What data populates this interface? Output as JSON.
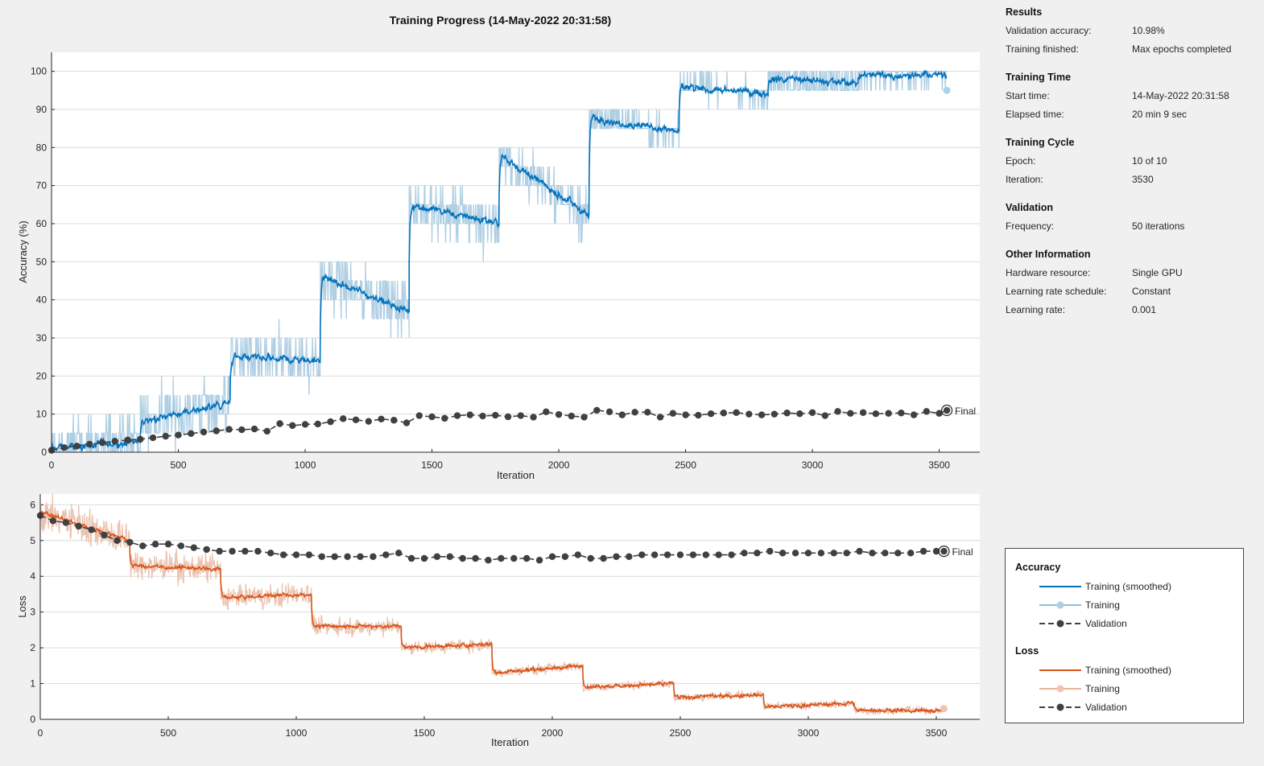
{
  "title": "Training Progress (14-May-2022 20:31:58)",
  "colors": {
    "acc_smoothed": "#0072bd",
    "acc_raw": "#b0cfe3",
    "loss_smoothed": "#d95319",
    "loss_raw": "#ebc3b0",
    "validation": "#404040",
    "grid": "#dcdcdc"
  },
  "info": {
    "sections": [
      {
        "title": "Results",
        "rows": [
          {
            "k": "Validation accuracy:",
            "v": "10.98%"
          },
          {
            "k": "Training finished:",
            "v": "Max epochs completed"
          }
        ]
      },
      {
        "title": "Training Time",
        "rows": [
          {
            "k": "Start time:",
            "v": "14-May-2022 20:31:58"
          },
          {
            "k": "Elapsed time:",
            "v": "20 min 9 sec"
          }
        ]
      },
      {
        "title": "Training Cycle",
        "rows": [
          {
            "k": "Epoch:",
            "v": "10 of 10"
          },
          {
            "k": "Iteration:",
            "v": "3530"
          }
        ]
      },
      {
        "title": "Validation",
        "rows": [
          {
            "k": "Frequency:",
            "v": "50 iterations"
          }
        ]
      },
      {
        "title": "Other Information",
        "rows": [
          {
            "k": "Hardware resource:",
            "v": "Single GPU"
          },
          {
            "k": "Learning rate schedule:",
            "v": "Constant"
          },
          {
            "k": "Learning rate:",
            "v": "0.001"
          }
        ]
      }
    ]
  },
  "legend": {
    "accuracy_title": "Accuracy",
    "loss_title": "Loss",
    "accuracy_items": [
      "Training (smoothed)",
      "Training",
      "Validation"
    ],
    "loss_items": [
      "Training (smoothed)",
      "Training",
      "Validation"
    ]
  },
  "chart_data": [
    {
      "type": "line",
      "ylabel": "Accuracy (%)",
      "xlabel": "Iteration",
      "xlim": [
        0,
        3660
      ],
      "ylim": [
        0,
        105
      ],
      "xticks": [
        0,
        500,
        1000,
        1500,
        2000,
        2500,
        3000,
        3500
      ],
      "yticks": [
        0,
        10,
        20,
        30,
        40,
        50,
        60,
        70,
        80,
        90,
        100
      ],
      "grid": true,
      "training_smoothed_levels": [
        {
          "x": [
            0,
            350
          ],
          "y": [
            1,
            3
          ]
        },
        {
          "x": [
            350,
            705
          ],
          "y": [
            8,
            13
          ]
        },
        {
          "x": [
            705,
            1060
          ],
          "y": [
            25,
            24
          ]
        },
        {
          "x": [
            1060,
            1410
          ],
          "y": [
            46,
            37
          ]
        },
        {
          "x": [
            1410,
            1765
          ],
          "y": [
            65,
            60
          ]
        },
        {
          "x": [
            1765,
            2120
          ],
          "y": [
            78,
            62
          ]
        },
        {
          "x": [
            2120,
            2475
          ],
          "y": [
            88,
            84
          ]
        },
        {
          "x": [
            2475,
            2825
          ],
          "y": [
            96,
            94
          ]
        },
        {
          "x": [
            2825,
            3180
          ],
          "y": [
            98,
            97
          ]
        },
        {
          "x": [
            3180,
            3530
          ],
          "y": [
            99,
            99
          ]
        }
      ],
      "final_training_point": {
        "x": 3530,
        "y": 95
      },
      "validation": {
        "x": [
          0,
          50,
          100,
          150,
          200,
          250,
          300,
          350,
          400,
          450,
          500,
          550,
          600,
          650,
          700,
          750,
          800,
          850,
          900,
          950,
          1000,
          1050,
          1100,
          1150,
          1200,
          1250,
          1300,
          1350,
          1400,
          1450,
          1500,
          1550,
          1600,
          1650,
          1700,
          1750,
          1800,
          1850,
          1900,
          1950,
          2000,
          2050,
          2100,
          2150,
          2200,
          2250,
          2300,
          2350,
          2400,
          2450,
          2500,
          2550,
          2600,
          2650,
          2700,
          2750,
          2800,
          2850,
          2900,
          2950,
          3000,
          3050,
          3100,
          3150,
          3200,
          3250,
          3300,
          3350,
          3400,
          3450,
          3500,
          3530
        ],
        "y": [
          0.5,
          1.2,
          1.6,
          2.1,
          2.5,
          2.9,
          3.2,
          3.4,
          3.8,
          4.2,
          4.5,
          4.9,
          5.3,
          5.6,
          6.0,
          5.9,
          6.1,
          5.5,
          7.5,
          7.0,
          7.3,
          7.4,
          8.0,
          8.8,
          8.5,
          8.1,
          8.7,
          8.4,
          7.7,
          9.6,
          9.3,
          8.9,
          9.6,
          9.8,
          9.5,
          9.7,
          9.3,
          9.6,
          9.2,
          10.6,
          9.9,
          9.5,
          9.2,
          11.0,
          10.6,
          9.8,
          10.5,
          10.5,
          9.2,
          10.2,
          9.8,
          9.7,
          10.1,
          10.3,
          10.4,
          10.0,
          9.8,
          10.0,
          10.3,
          10.1,
          10.4,
          9.6,
          10.7,
          10.2,
          10.4,
          10.1,
          10.2,
          10.3,
          9.8,
          10.7,
          10.2,
          10.98
        ]
      },
      "final_label": "Final"
    },
    {
      "type": "line",
      "ylabel": "Loss",
      "xlabel": "Iteration",
      "xlim": [
        0,
        3670
      ],
      "ylim": [
        0,
        6.3
      ],
      "xticks": [
        0,
        500,
        1000,
        1500,
        2000,
        2500,
        3000,
        3500
      ],
      "yticks": [
        0,
        1,
        2,
        3,
        4,
        5,
        6
      ],
      "grid": true,
      "training_smoothed_levels": [
        {
          "x": [
            0,
            350
          ],
          "y": [
            5.8,
            5.0
          ]
        },
        {
          "x": [
            350,
            705
          ],
          "y": [
            4.3,
            4.2
          ]
        },
        {
          "x": [
            705,
            1060
          ],
          "y": [
            3.4,
            3.5
          ]
        },
        {
          "x": [
            1060,
            1410
          ],
          "y": [
            2.6,
            2.6
          ]
        },
        {
          "x": [
            1410,
            1765
          ],
          "y": [
            2.0,
            2.1
          ]
        },
        {
          "x": [
            1765,
            2120
          ],
          "y": [
            1.3,
            1.5
          ]
        },
        {
          "x": [
            2120,
            2475
          ],
          "y": [
            0.9,
            1.0
          ]
        },
        {
          "x": [
            2475,
            2825
          ],
          "y": [
            0.6,
            0.7
          ]
        },
        {
          "x": [
            2825,
            3180
          ],
          "y": [
            0.35,
            0.45
          ]
        },
        {
          "x": [
            3180,
            3530
          ],
          "y": [
            0.25,
            0.25
          ]
        }
      ],
      "final_training_point": {
        "x": 3530,
        "y": 0.3
      },
      "validation": {
        "x": [
          0,
          50,
          100,
          150,
          200,
          250,
          300,
          350,
          400,
          450,
          500,
          550,
          600,
          650,
          700,
          750,
          800,
          850,
          900,
          950,
          1000,
          1050,
          1100,
          1150,
          1200,
          1250,
          1300,
          1350,
          1400,
          1450,
          1500,
          1550,
          1600,
          1650,
          1700,
          1750,
          1800,
          1850,
          1900,
          1950,
          2000,
          2050,
          2100,
          2150,
          2200,
          2250,
          2300,
          2350,
          2400,
          2450,
          2500,
          2550,
          2600,
          2650,
          2700,
          2750,
          2800,
          2850,
          2900,
          2950,
          3000,
          3050,
          3100,
          3150,
          3200,
          3250,
          3300,
          3350,
          3400,
          3450,
          3500,
          3530
        ],
        "y": [
          5.7,
          5.55,
          5.5,
          5.4,
          5.3,
          5.15,
          5.0,
          4.95,
          4.85,
          4.9,
          4.9,
          4.85,
          4.8,
          4.75,
          4.7,
          4.7,
          4.7,
          4.7,
          4.65,
          4.6,
          4.6,
          4.6,
          4.55,
          4.55,
          4.55,
          4.55,
          4.55,
          4.6,
          4.65,
          4.5,
          4.5,
          4.55,
          4.55,
          4.5,
          4.5,
          4.45,
          4.5,
          4.5,
          4.5,
          4.45,
          4.55,
          4.55,
          4.6,
          4.5,
          4.5,
          4.55,
          4.55,
          4.6,
          4.6,
          4.6,
          4.6,
          4.6,
          4.6,
          4.6,
          4.6,
          4.65,
          4.65,
          4.7,
          4.65,
          4.65,
          4.65,
          4.65,
          4.65,
          4.65,
          4.7,
          4.65,
          4.65,
          4.65,
          4.65,
          4.7,
          4.7,
          4.7
        ]
      },
      "final_label": "Final"
    }
  ]
}
